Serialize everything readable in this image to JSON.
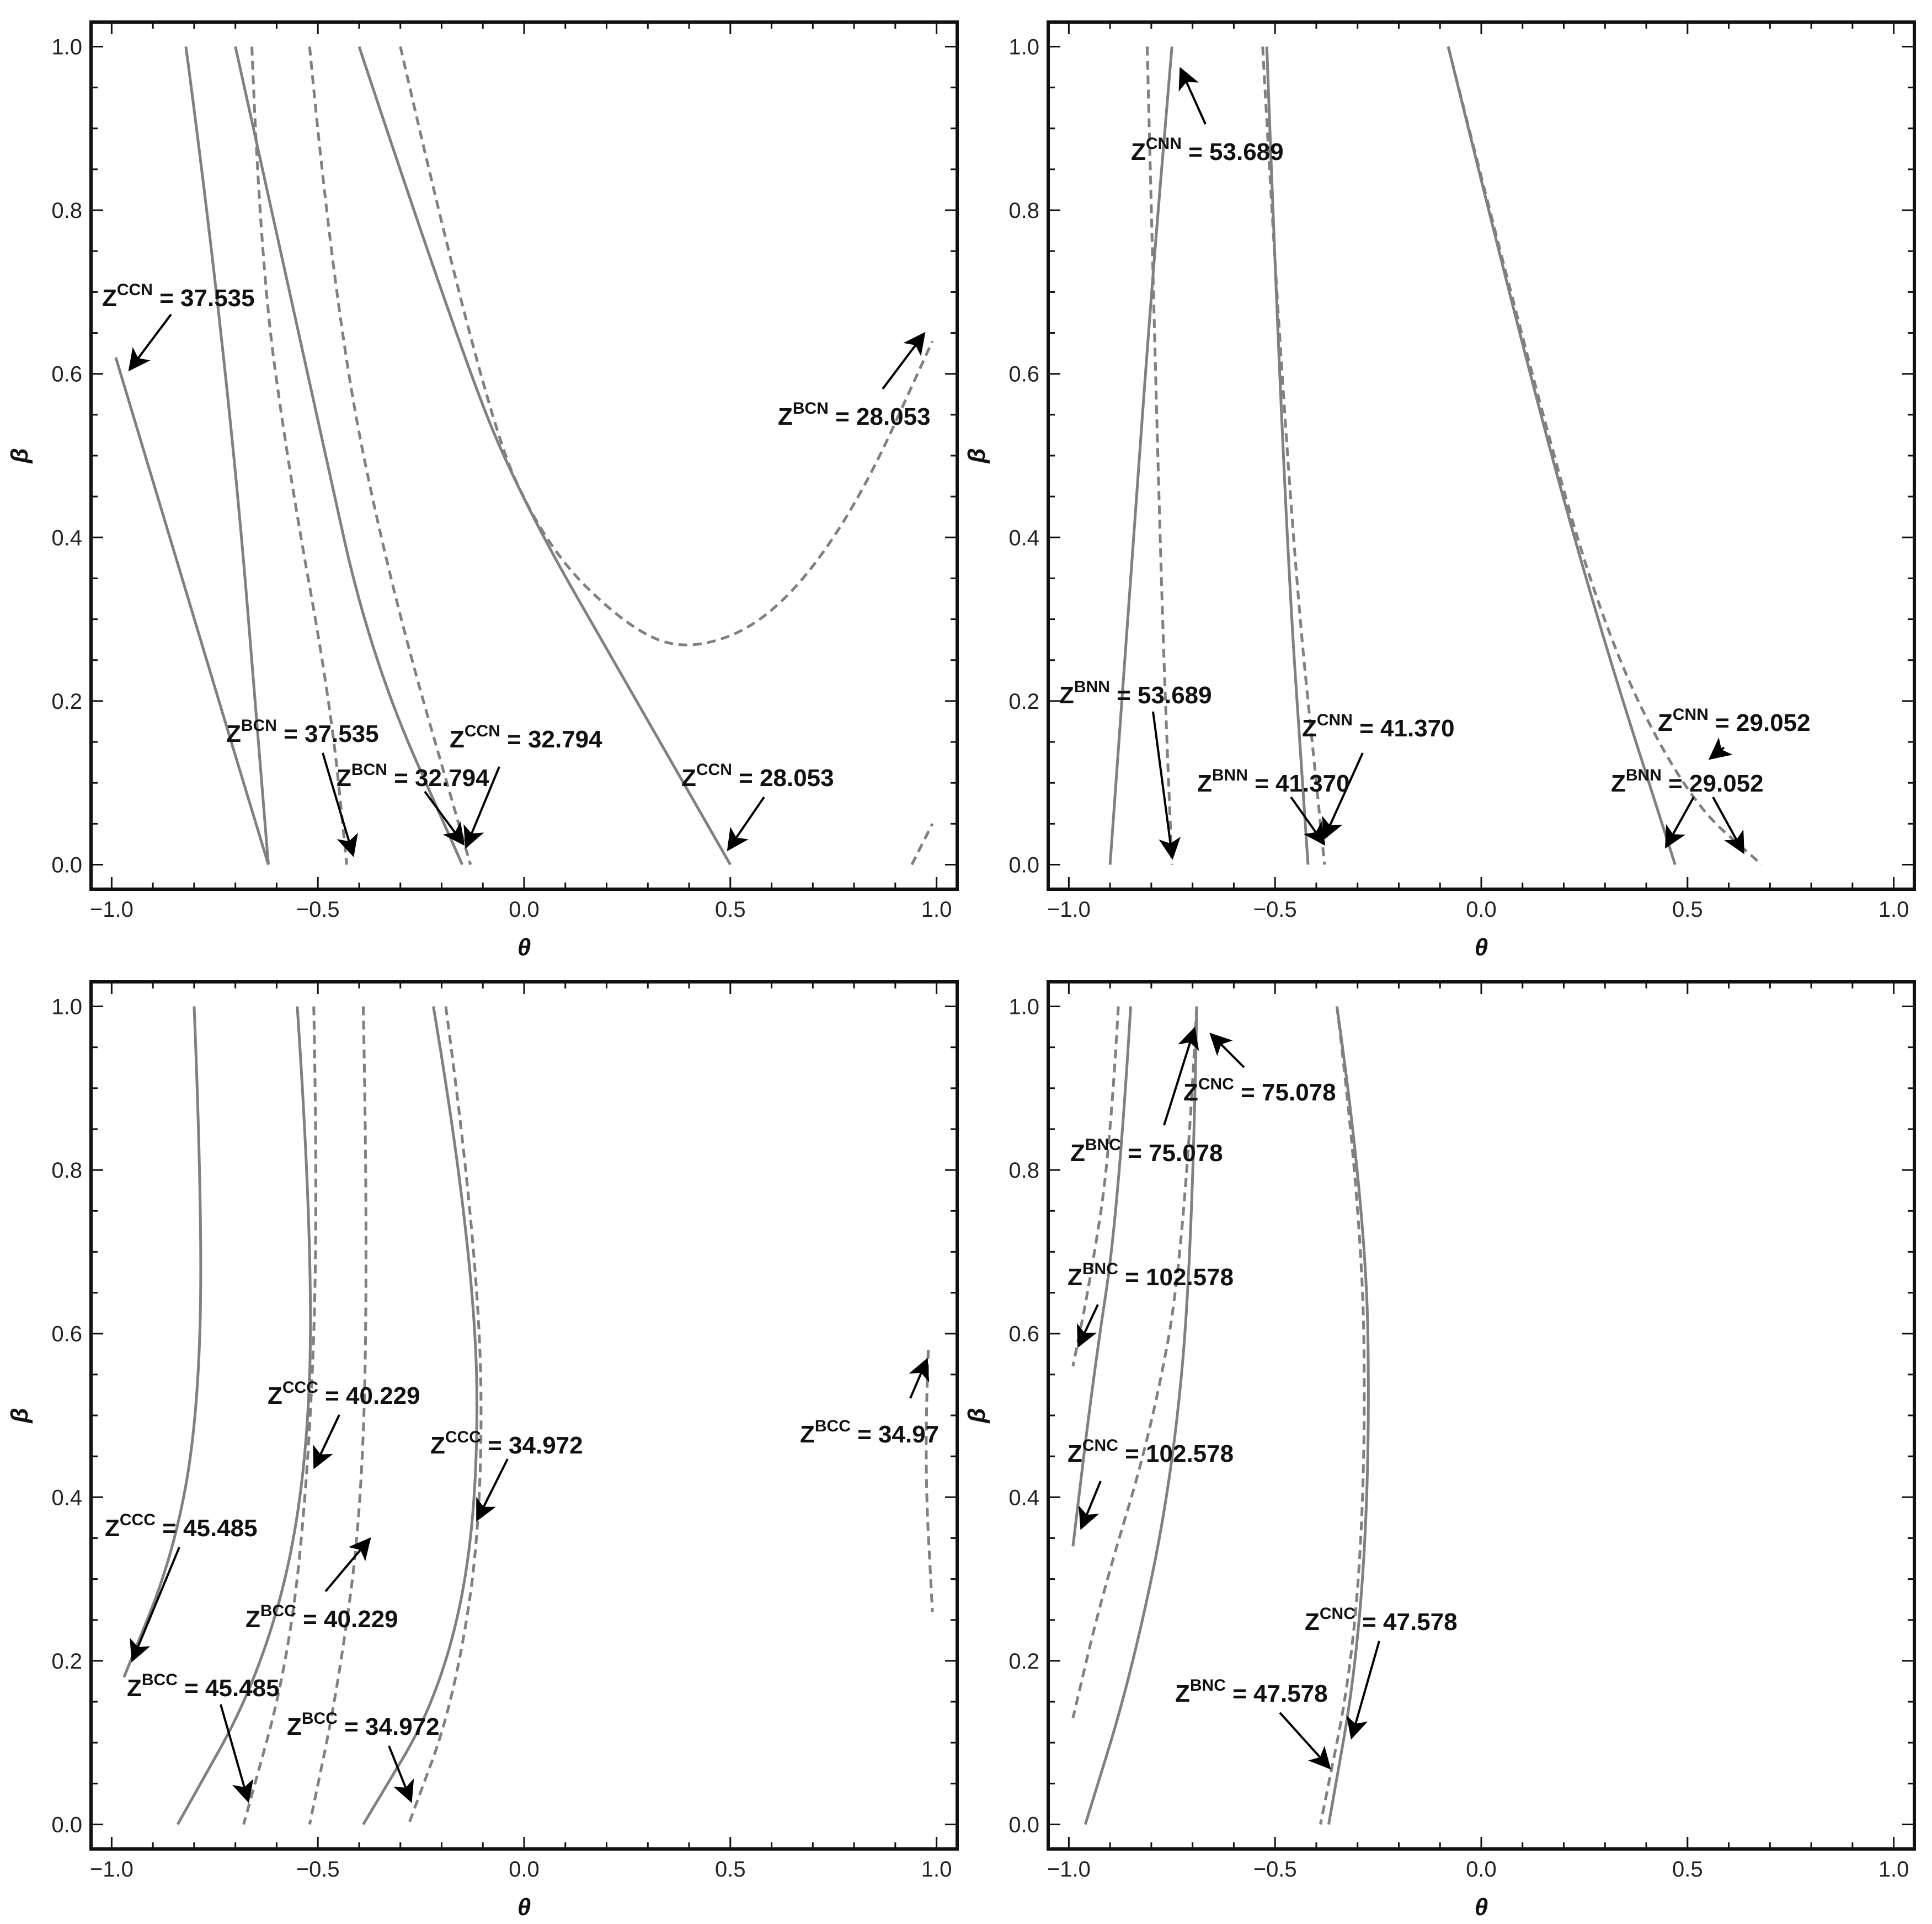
{
  "chart_data": [
    {
      "type": "line",
      "xlabel": "θ",
      "ylabel": "β",
      "xlim": [
        -1.05,
        1.05
      ],
      "ylim": [
        -0.03,
        1.03
      ],
      "xticks": [
        "-1.0",
        "-0.5",
        "0.0",
        "0.5",
        "1.0"
      ],
      "yticks": [
        "0.0",
        "0.2",
        "0.4",
        "0.6",
        "0.8",
        "1.0"
      ],
      "series": [
        {
          "style": "solid",
          "x": [
            -0.82,
            -0.72,
            -0.62
          ],
          "y": [
            1.0,
            0.62,
            0.0
          ]
        },
        {
          "style": "solid",
          "x": [
            -0.99,
            -0.8,
            -0.62
          ],
          "y": [
            0.62,
            0.3,
            0.0
          ]
        },
        {
          "style": "solid",
          "x": [
            -0.7,
            -0.5,
            -0.37,
            -0.15
          ],
          "y": [
            1.0,
            0.54,
            0.25,
            0.0
          ]
        },
        {
          "style": "solid",
          "x": [
            -0.4,
            -0.15,
            0.0,
            0.25,
            0.5
          ],
          "y": [
            1.0,
            0.62,
            0.44,
            0.22,
            0.0
          ]
        },
        {
          "style": "dashed",
          "x": [
            -0.66,
            -0.64,
            -0.57,
            -0.47,
            -0.43
          ],
          "y": [
            1.0,
            0.74,
            0.48,
            0.2,
            0.0
          ]
        },
        {
          "style": "dashed",
          "x": [
            -0.52,
            -0.46,
            -0.33,
            -0.13
          ],
          "y": [
            1.0,
            0.68,
            0.35,
            0.0
          ]
        },
        {
          "style": "dashed",
          "x": [
            -0.3,
            -0.1,
            0.05,
            0.25,
            0.4,
            0.6,
            0.8,
            0.99
          ],
          "y": [
            1.0,
            0.56,
            0.39,
            0.29,
            0.26,
            0.3,
            0.43,
            0.64
          ]
        },
        {
          "style": "dashed",
          "x": [
            0.94,
            0.99
          ],
          "y": [
            0.0,
            0.05
          ]
        }
      ],
      "annotations": [
        {
          "sup": "CCN",
          "value": "37.535"
        },
        {
          "sup": "BCN",
          "value": "28.053"
        },
        {
          "sup": "BCN",
          "value": "37.535"
        },
        {
          "sup": "CCN",
          "value": "32.794"
        },
        {
          "sup": "BCN",
          "value": "32.794"
        },
        {
          "sup": "CCN",
          "value": "28.053"
        }
      ]
    },
    {
      "type": "line",
      "xlabel": "θ",
      "ylabel": "β",
      "xlim": [
        -1.05,
        1.05
      ],
      "ylim": [
        -0.03,
        1.03
      ],
      "xticks": [
        "-1.0",
        "-0.5",
        "0.0",
        "0.5",
        "1.0"
      ],
      "yticks": [
        "0.0",
        "0.2",
        "0.4",
        "0.6",
        "0.8",
        "1.0"
      ],
      "series": [
        {
          "style": "solid",
          "x": [
            -0.9,
            -0.85,
            -0.8,
            -0.75
          ],
          "y": [
            0.0,
            0.35,
            0.7,
            1.0
          ]
        },
        {
          "style": "solid",
          "x": [
            -0.52,
            -0.48,
            -0.42
          ],
          "y": [
            1.0,
            0.45,
            0.0
          ]
        },
        {
          "style": "solid",
          "x": [
            -0.08,
            0.1,
            0.28,
            0.47
          ],
          "y": [
            1.0,
            0.63,
            0.3,
            0.0
          ]
        },
        {
          "style": "dashed",
          "x": [
            -0.81,
            -0.79,
            -0.77,
            -0.75
          ],
          "y": [
            1.0,
            0.6,
            0.25,
            0.0
          ]
        },
        {
          "style": "dashed",
          "x": [
            -0.53,
            -0.47,
            -0.38
          ],
          "y": [
            1.0,
            0.45,
            0.0
          ]
        },
        {
          "style": "dashed",
          "x": [
            -0.08,
            0.12,
            0.3,
            0.5,
            0.68
          ],
          "y": [
            1.0,
            0.6,
            0.28,
            0.08,
            0.0
          ]
        }
      ],
      "annotations": [
        {
          "sup": "CNN",
          "value": "53.689"
        },
        {
          "sup": "BNN",
          "value": "53.689"
        },
        {
          "sup": "CNN",
          "value": "41.370"
        },
        {
          "sup": "BNN",
          "value": "41.370"
        },
        {
          "sup": "CNN",
          "value": "29.052"
        },
        {
          "sup": "BNN",
          "value": "29.052"
        }
      ]
    },
    {
      "type": "line",
      "xlabel": "θ",
      "ylabel": "β",
      "xlim": [
        -1.05,
        1.05
      ],
      "ylim": [
        -0.03,
        1.03
      ],
      "xticks": [
        "-1.0",
        "-0.5",
        "0.0",
        "0.5",
        "1.0"
      ],
      "yticks": [
        "0.0",
        "0.2",
        "0.4",
        "0.6",
        "0.8",
        "1.0"
      ],
      "series": [
        {
          "style": "solid",
          "x": [
            -0.8,
            -0.78,
            -0.79,
            -0.85,
            -0.97
          ],
          "y": [
            1.0,
            0.75,
            0.5,
            0.33,
            0.18
          ]
        },
        {
          "style": "solid",
          "x": [
            -0.55,
            -0.51,
            -0.53,
            -0.64,
            -0.84
          ],
          "y": [
            1.0,
            0.7,
            0.4,
            0.18,
            0.0
          ]
        },
        {
          "style": "solid",
          "x": [
            -0.22,
            -0.12,
            -0.11,
            -0.2,
            -0.39
          ],
          "y": [
            1.0,
            0.7,
            0.38,
            0.16,
            0.0
          ]
        },
        {
          "style": "dashed",
          "x": [
            -0.51,
            -0.5,
            -0.52,
            -0.57,
            -0.68
          ],
          "y": [
            1.0,
            0.75,
            0.45,
            0.2,
            0.0
          ]
        },
        {
          "style": "dashed",
          "x": [
            -0.39,
            -0.38,
            -0.39,
            -0.45,
            -0.52
          ],
          "y": [
            1.0,
            0.75,
            0.4,
            0.17,
            0.0
          ]
        },
        {
          "style": "dashed",
          "x": [
            -0.19,
            -0.11,
            -0.1,
            -0.17,
            -0.28
          ],
          "y": [
            1.0,
            0.7,
            0.38,
            0.15,
            0.0
          ]
        },
        {
          "style": "dashed",
          "x": [
            0.98,
            0.97,
            0.99
          ],
          "y": [
            0.58,
            0.45,
            0.26
          ]
        }
      ],
      "annotations": [
        {
          "sup": "CCC",
          "value": "40.229"
        },
        {
          "sup": "CCC",
          "value": "34.972"
        },
        {
          "sup": "BCC",
          "value": "34.97"
        },
        {
          "sup": "CCC",
          "value": "45.485"
        },
        {
          "sup": "BCC",
          "value": "40.229"
        },
        {
          "sup": "BCC",
          "value": "45.485"
        },
        {
          "sup": "BCC",
          "value": "34.972"
        }
      ]
    },
    {
      "type": "line",
      "xlabel": "θ",
      "ylabel": "β",
      "xlim": [
        -1.05,
        1.05
      ],
      "ylim": [
        -0.03,
        1.03
      ],
      "xticks": [
        "-1.0",
        "-0.5",
        "0.0",
        "0.5",
        "1.0"
      ],
      "yticks": [
        "0.0",
        "0.2",
        "0.4",
        "0.6",
        "0.8",
        "1.0"
      ],
      "series": [
        {
          "style": "solid",
          "x": [
            -0.85,
            -0.88,
            -0.94,
            -0.99
          ],
          "y": [
            1.0,
            0.75,
            0.55,
            0.34
          ]
        },
        {
          "style": "solid",
          "x": [
            -0.69,
            -0.7,
            -0.75,
            -0.85,
            -0.96
          ],
          "y": [
            1.0,
            0.7,
            0.42,
            0.18,
            0.0
          ]
        },
        {
          "style": "solid",
          "x": [
            -0.35,
            -0.28,
            -0.27,
            -0.3,
            -0.37
          ],
          "y": [
            1.0,
            0.75,
            0.45,
            0.2,
            0.0
          ]
        },
        {
          "style": "dashed",
          "x": [
            -0.88,
            -0.9,
            -0.95,
            -0.99
          ],
          "y": [
            1.0,
            0.82,
            0.66,
            0.56
          ]
        },
        {
          "style": "dashed",
          "x": [
            -0.69,
            -0.72,
            -0.8,
            -0.92,
            -0.99
          ],
          "y": [
            1.0,
            0.7,
            0.48,
            0.28,
            0.13
          ]
        },
        {
          "style": "dashed",
          "x": [
            -0.35,
            -0.29,
            -0.28,
            -0.31,
            -0.39
          ],
          "y": [
            1.0,
            0.75,
            0.45,
            0.2,
            0.0
          ]
        }
      ],
      "annotations": [
        {
          "sup": "CNC",
          "value": "75.078"
        },
        {
          "sup": "BNC",
          "value": "75.078"
        },
        {
          "sup": "BNC",
          "value": "102.578"
        },
        {
          "sup": "CNC",
          "value": "102.578"
        },
        {
          "sup": "CNC",
          "value": "47.578"
        },
        {
          "sup": "BNC",
          "value": "47.578"
        }
      ]
    }
  ],
  "colors": {
    "curve": "#808080",
    "frame": "#111111",
    "arrow": "#000000",
    "text": "#111111"
  }
}
